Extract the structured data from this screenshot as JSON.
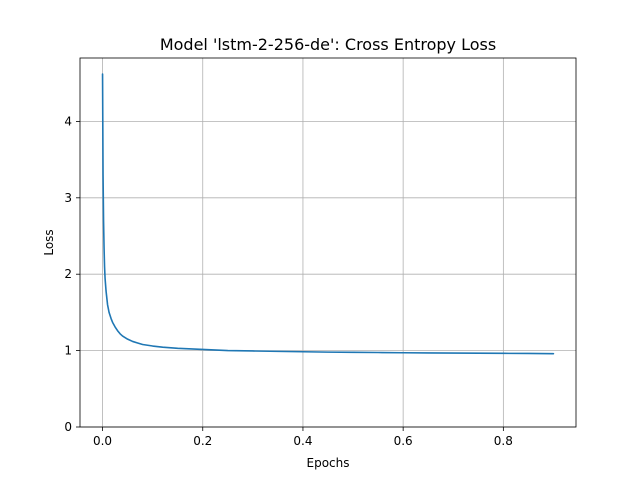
{
  "chart_data": {
    "type": "line",
    "title": "Model 'lstm-2-256-de': Cross Entropy Loss",
    "xlabel": "Epochs",
    "ylabel": "Loss",
    "xlim": [
      -0.045,
      0.945
    ],
    "ylim": [
      0,
      4.83
    ],
    "xticks": [
      0.0,
      0.2,
      0.4,
      0.6,
      0.8
    ],
    "xtick_labels": [
      "0.0",
      "0.2",
      "0.4",
      "0.6",
      "0.8"
    ],
    "yticks": [
      0,
      1,
      2,
      3,
      4
    ],
    "ytick_labels": [
      "0",
      "1",
      "2",
      "3",
      "4"
    ],
    "grid": true,
    "series": [
      {
        "color": "#1f77b4",
        "x": [
          0.0,
          0.001,
          0.002,
          0.003,
          0.004,
          0.005,
          0.007,
          0.01,
          0.013,
          0.017,
          0.02,
          0.025,
          0.03,
          0.035,
          0.04,
          0.05,
          0.06,
          0.07,
          0.08,
          0.1,
          0.12,
          0.15,
          0.2,
          0.25,
          0.3,
          0.35,
          0.4,
          0.45,
          0.5,
          0.55,
          0.6,
          0.65,
          0.7,
          0.75,
          0.8,
          0.85,
          0.9
        ],
        "y": [
          4.62,
          3.3,
          2.7,
          2.35,
          2.1,
          1.95,
          1.78,
          1.6,
          1.5,
          1.42,
          1.37,
          1.31,
          1.26,
          1.22,
          1.19,
          1.15,
          1.12,
          1.1,
          1.08,
          1.06,
          1.045,
          1.03,
          1.015,
          1.0,
          0.995,
          0.99,
          0.985,
          0.98,
          0.978,
          0.975,
          0.972,
          0.97,
          0.968,
          0.966,
          0.964,
          0.963,
          0.96
        ]
      }
    ]
  }
}
